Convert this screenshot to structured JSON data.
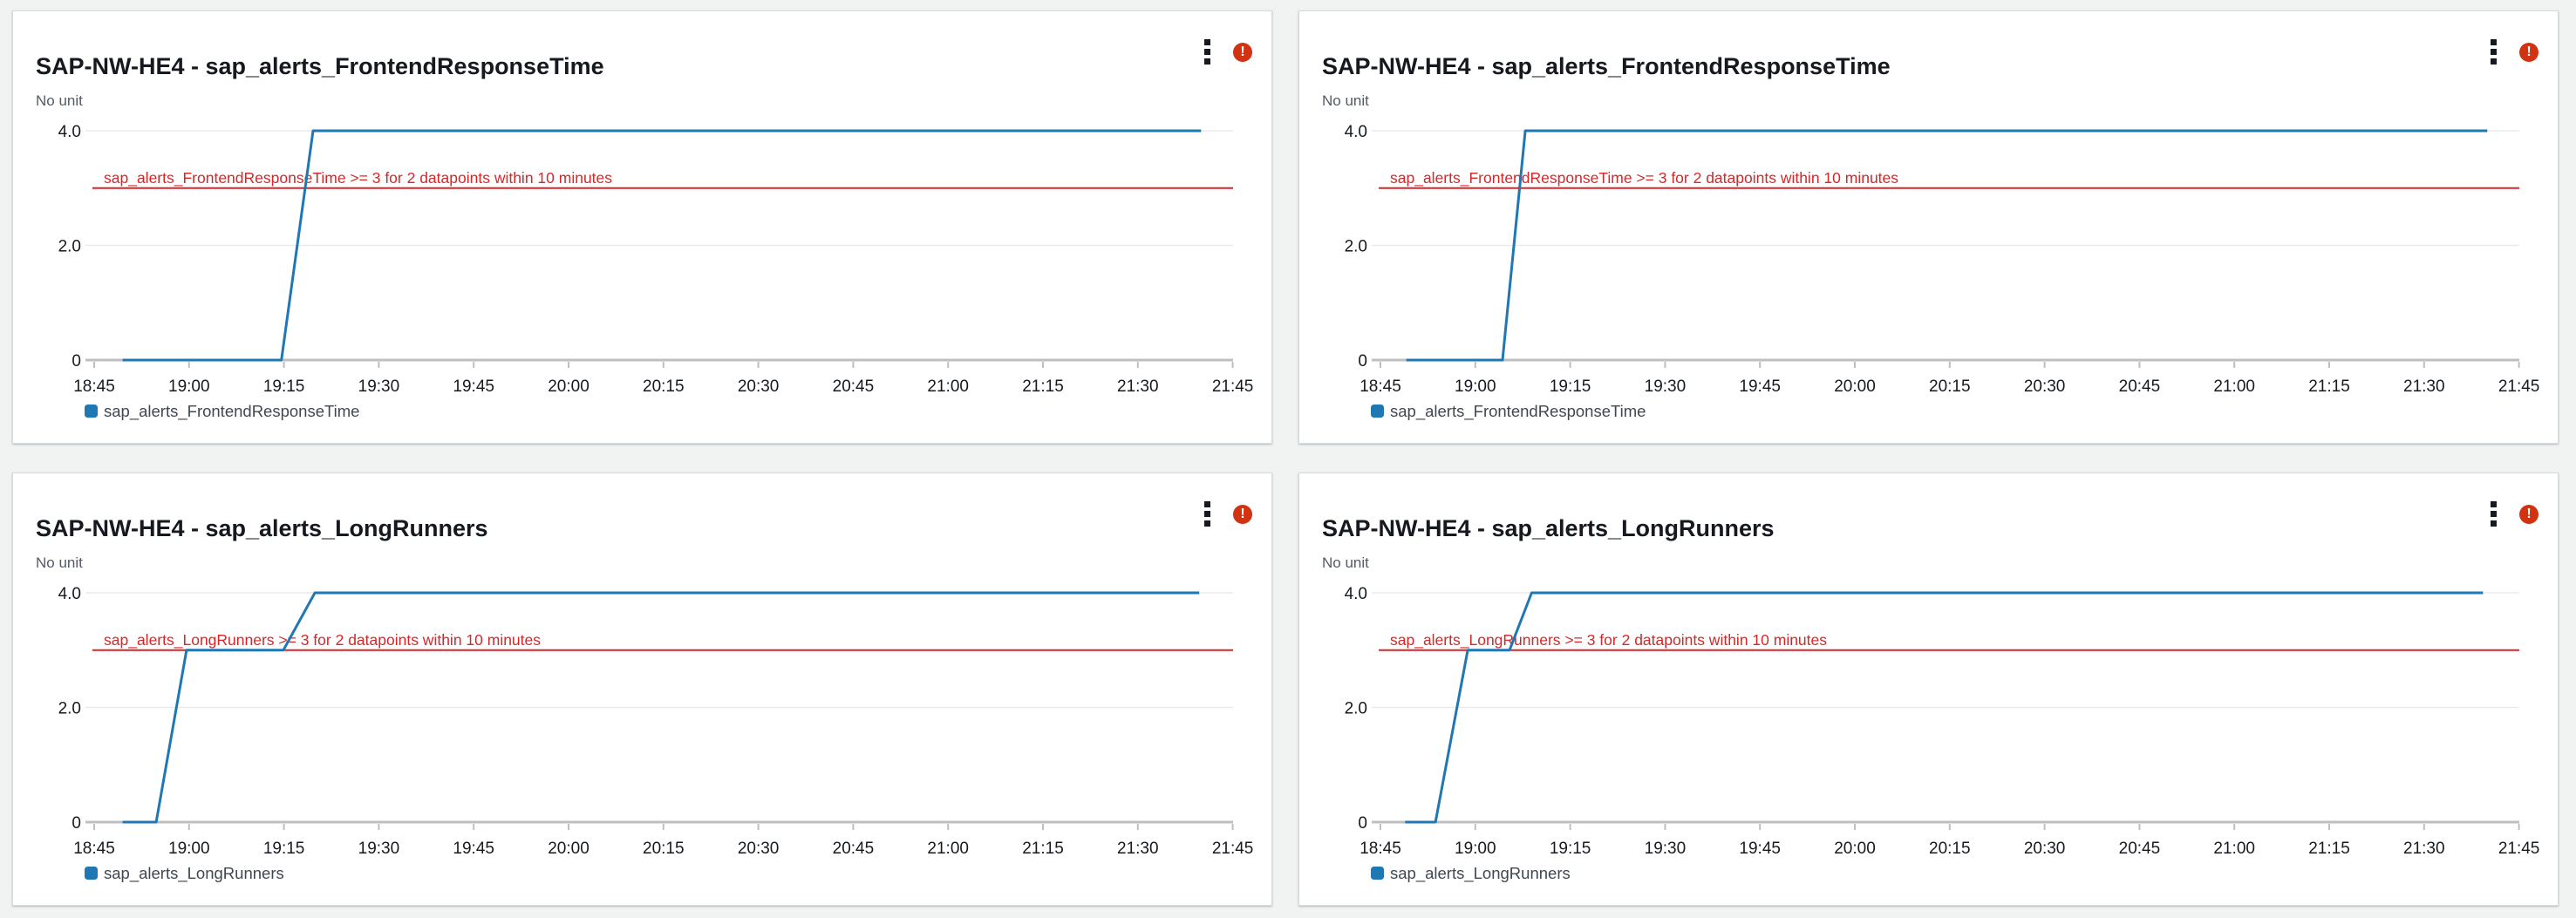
{
  "app": "CloudWatch dashboard widgets",
  "colors": {
    "page_background": "#f1f3f3",
    "card_background": "#ffffff",
    "card_border": "#d5dbdb",
    "title_text": "#16191f",
    "axis_label_text": "#16191f",
    "unit_label_text": "#545b64",
    "legend_text": "#414750",
    "gridline": "#e9ebeb",
    "axis_line": "#bcc0c2",
    "series_blue": "#1f77b4",
    "threshold_red": "#d62728",
    "alarm_icon_red": "#d13212"
  },
  "icons": {
    "menu": "kebab-menu-icon",
    "alarm": "alarm-exclamation-icon"
  },
  "chart_data": [
    {
      "type": "line",
      "title": "SAP-NW-HE4 - sap_alerts_FrontendResponseTime",
      "unit_label": "No unit",
      "alarm_state": "in alarm",
      "ylim": [
        0,
        4.3
      ],
      "yticks": [
        {
          "value": 4,
          "label": "4.0"
        },
        {
          "value": 2,
          "label": "2.0"
        },
        {
          "value": 0,
          "label": "0"
        }
      ],
      "xticks": [
        "18:45",
        "19:00",
        "19:15",
        "19:30",
        "19:45",
        "20:00",
        "20:15",
        "20:30",
        "20:45",
        "21:00",
        "21:15",
        "21:30",
        "21:45"
      ],
      "xtick_interval_minutes": 15,
      "grid": true,
      "legend_position": "bottom",
      "threshold": {
        "value": 3,
        "label": "sap_alerts_FrontendResponseTime >= 3 for 2 datapoints within 10 minutes"
      },
      "series": [
        {
          "name": "sap_alerts_FrontendResponseTime",
          "points_minutes_after_1845_vs_value": [
            [
              4.5,
              0
            ],
            [
              29.6,
              0
            ],
            [
              34.6,
              4
            ],
            [
              175,
              4
            ]
          ]
        }
      ]
    },
    {
      "type": "line",
      "title": "SAP-NW-HE4 - sap_alerts_FrontendResponseTime",
      "unit_label": "No unit",
      "alarm_state": "in alarm",
      "ylim": [
        0,
        4.3
      ],
      "yticks": [
        {
          "value": 4,
          "label": "4.0"
        },
        {
          "value": 2,
          "label": "2.0"
        },
        {
          "value": 0,
          "label": "0"
        }
      ],
      "xticks": [
        "18:45",
        "19:00",
        "19:15",
        "19:30",
        "19:45",
        "20:00",
        "20:15",
        "20:30",
        "20:45",
        "21:00",
        "21:15",
        "21:30",
        "21:45"
      ],
      "xtick_interval_minutes": 15,
      "grid": true,
      "legend_position": "bottom",
      "threshold": {
        "value": 3,
        "label": "sap_alerts_FrontendResponseTime >= 3 for 2 datapoints within 10 minutes"
      },
      "series": [
        {
          "name": "sap_alerts_FrontendResponseTime",
          "points_minutes_after_1845_vs_value": [
            [
              4.1,
              0
            ],
            [
              19.3,
              0
            ],
            [
              22.9,
              4
            ],
            [
              175,
              4
            ]
          ]
        }
      ]
    },
    {
      "type": "line",
      "title": "SAP-NW-HE4 - sap_alerts_LongRunners",
      "unit_label": "No unit",
      "alarm_state": "in alarm",
      "ylim": [
        0,
        4.3
      ],
      "yticks": [
        {
          "value": 4,
          "label": "4.0"
        },
        {
          "value": 2,
          "label": "2.0"
        },
        {
          "value": 0,
          "label": "0"
        }
      ],
      "xticks": [
        "18:45",
        "19:00",
        "19:15",
        "19:30",
        "19:45",
        "20:00",
        "20:15",
        "20:30",
        "20:45",
        "21:00",
        "21:15",
        "21:30",
        "21:45"
      ],
      "xtick_interval_minutes": 15,
      "grid": true,
      "legend_position": "bottom",
      "threshold": {
        "value": 3,
        "label": "sap_alerts_LongRunners >= 3 for 2 datapoints within 10 minutes"
      },
      "series": [
        {
          "name": "sap_alerts_LongRunners",
          "points_minutes_after_1845_vs_value": [
            [
              4.5,
              0
            ],
            [
              9.8,
              0
            ],
            [
              14.6,
              3
            ],
            [
              29.9,
              3
            ],
            [
              34.9,
              4
            ],
            [
              174.7,
              4
            ]
          ]
        }
      ]
    },
    {
      "type": "line",
      "title": "SAP-NW-HE4 - sap_alerts_LongRunners",
      "unit_label": "No unit",
      "alarm_state": "in alarm",
      "ylim": [
        0,
        4.3
      ],
      "yticks": [
        {
          "value": 4,
          "label": "4.0"
        },
        {
          "value": 2,
          "label": "2.0"
        },
        {
          "value": 0,
          "label": "0"
        }
      ],
      "xticks": [
        "18:45",
        "19:00",
        "19:15",
        "19:30",
        "19:45",
        "20:00",
        "20:15",
        "20:30",
        "20:45",
        "21:00",
        "21:15",
        "21:30",
        "21:45"
      ],
      "xtick_interval_minutes": 15,
      "grid": true,
      "legend_position": "bottom",
      "threshold": {
        "value": 3,
        "label": "sap_alerts_LongRunners >= 3 for 2 datapoints within 10 minutes"
      },
      "series": [
        {
          "name": "sap_alerts_LongRunners",
          "points_minutes_after_1845_vs_value": [
            [
              3.9,
              0
            ],
            [
              8.7,
              0
            ],
            [
              13.8,
              3
            ],
            [
              20.4,
              3
            ],
            [
              23.9,
              4
            ],
            [
              174.3,
              4
            ]
          ]
        }
      ]
    }
  ]
}
